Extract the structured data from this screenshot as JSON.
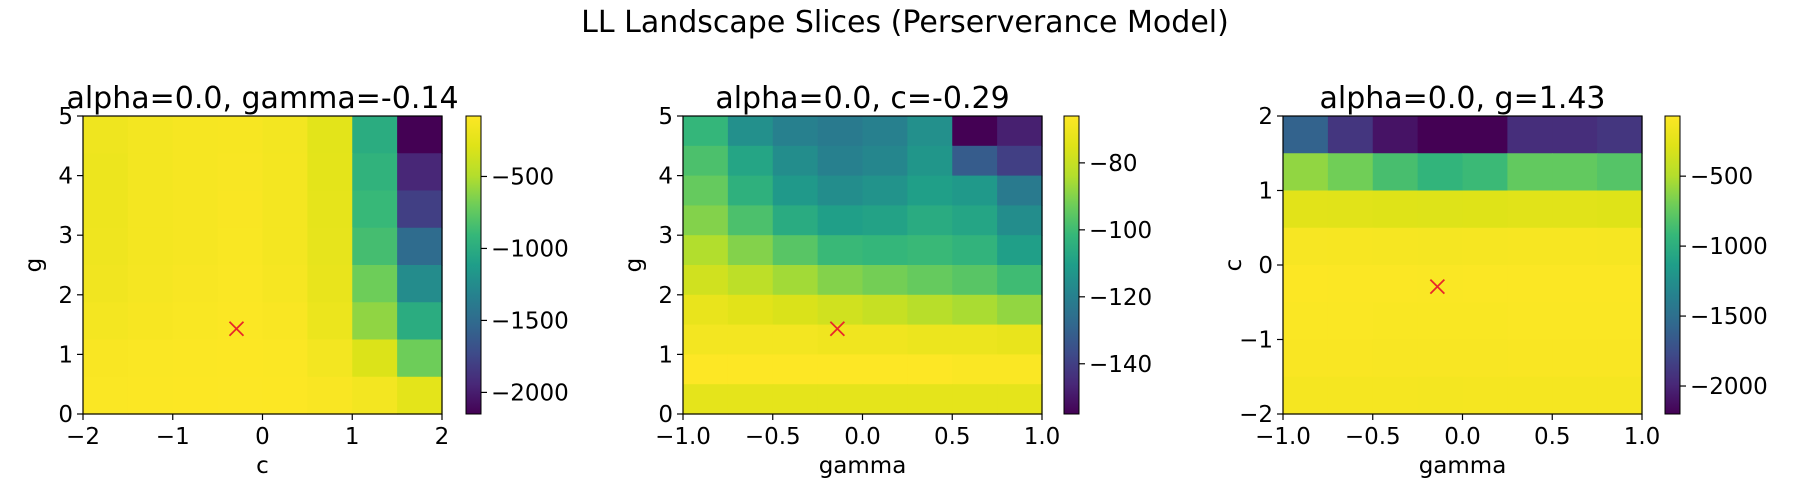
{
  "figure": {
    "suptitle": "LL Landscape Slices (Perserverance Model)"
  },
  "chart_data": [
    {
      "type": "heatmap",
      "title": "alpha=0.0, gamma=-0.14",
      "xlabel": "c",
      "ylabel": "g",
      "xlim": [
        -2,
        2
      ],
      "ylim": [
        0,
        5
      ],
      "xticks": [
        -2,
        -1,
        0,
        1,
        2
      ],
      "yticks": [
        0,
        1,
        2,
        3,
        4,
        5
      ],
      "xtick_labels": [
        "−2",
        "−1",
        "0",
        "1",
        "2"
      ],
      "ytick_labels": [
        "0",
        "1",
        "2",
        "3",
        "4",
        "5"
      ],
      "colormap": "viridis",
      "clim": [
        -2150,
        -80
      ],
      "colorbar_ticks": [
        -2000,
        -1500,
        -1000,
        -500
      ],
      "colorbar_tick_labels": [
        "−2000",
        "−1500",
        "−1000",
        "−500"
      ],
      "grid_rows_top_to_bottom": [
        [
          -180,
          -150,
          -130,
          -120,
          -150,
          -260,
          -1000,
          -2150
        ],
        [
          -190,
          -150,
          -130,
          -115,
          -145,
          -250,
          -950,
          -1950
        ],
        [
          -185,
          -145,
          -125,
          -110,
          -140,
          -240,
          -900,
          -1800
        ],
        [
          -180,
          -145,
          -125,
          -105,
          -140,
          -230,
          -850,
          -1500
        ],
        [
          -160,
          -135,
          -115,
          -100,
          -125,
          -220,
          -700,
          -1250
        ],
        [
          -140,
          -120,
          -105,
          -95,
          -110,
          -200,
          -600,
          -1000
        ],
        [
          -110,
          -100,
          -95,
          -90,
          -95,
          -150,
          -300,
          -700
        ],
        [
          -100,
          -95,
          -90,
          -85,
          -90,
          -110,
          -150,
          -250
        ]
      ],
      "marker": {
        "x": -0.29,
        "y": 1.43,
        "symbol": "x",
        "color": "#e8272a"
      }
    },
    {
      "type": "heatmap",
      "title": "alpha=0.0, c=-0.29",
      "xlabel": "gamma",
      "ylabel": "g",
      "xlim": [
        -1.0,
        1.0
      ],
      "ylim": [
        0,
        5
      ],
      "xticks": [
        -1.0,
        -0.5,
        0.0,
        0.5,
        1.0
      ],
      "yticks": [
        0,
        1,
        2,
        3,
        4,
        5
      ],
      "xtick_labels": [
        "−1.0",
        "−0.5",
        "0.0",
        "0.5",
        "1.0"
      ],
      "ytick_labels": [
        "0",
        "1",
        "2",
        "3",
        "4",
        "5"
      ],
      "colormap": "viridis",
      "clim": [
        -155,
        -66
      ],
      "colorbar_ticks": [
        -140,
        -120,
        -100,
        -80
      ],
      "colorbar_tick_labels": [
        "−140",
        "−120",
        "−100",
        "−80"
      ],
      "grid_rows_top_to_bottom": [
        [
          -102,
          -115,
          -120,
          -122,
          -120,
          -115,
          -155,
          -148
        ],
        [
          -98,
          -108,
          -116,
          -120,
          -118,
          -113,
          -132,
          -140
        ],
        [
          -94,
          -104,
          -112,
          -116,
          -114,
          -110,
          -112,
          -122
        ],
        [
          -90,
          -98,
          -106,
          -110,
          -109,
          -106,
          -108,
          -116
        ],
        [
          -84,
          -90,
          -96,
          -101,
          -102,
          -101,
          -103,
          -110
        ],
        [
          -78,
          -82,
          -86,
          -90,
          -92,
          -94,
          -96,
          -100
        ],
        [
          -72,
          -74,
          -76,
          -78,
          -80,
          -83,
          -85,
          -88
        ],
        [
          -69,
          -69,
          -69,
          -70,
          -70,
          -71,
          -71,
          -72
        ],
        [
          -66,
          -66,
          -66,
          -66,
          -66,
          -66,
          -67,
          -67
        ],
        [
          -73,
          -73,
          -73,
          -73,
          -73,
          -73,
          -73,
          -73
        ]
      ],
      "marker": {
        "x": -0.14,
        "y": 1.43,
        "symbol": "x",
        "color": "#e8272a"
      }
    },
    {
      "type": "heatmap",
      "title": "alpha=0.0, g=1.43",
      "xlabel": "gamma",
      "ylabel": "c",
      "xlim": [
        -1.0,
        1.0
      ],
      "ylim": [
        -2,
        2
      ],
      "xticks": [
        -1.0,
        -0.5,
        0.0,
        0.5,
        1.0
      ],
      "yticks": [
        -2,
        -1,
        0,
        1,
        2
      ],
      "xtick_labels": [
        "−1.0",
        "−0.5",
        "0.0",
        "0.5",
        "1.0"
      ],
      "ytick_labels": [
        "−2",
        "−1",
        "0",
        "1",
        "2"
      ],
      "colormap": "viridis",
      "clim": [
        -2200,
        -70
      ],
      "colorbar_ticks": [
        -2000,
        -1500,
        -1000,
        -500
      ],
      "colorbar_tick_labels": [
        "−2000",
        "−1500",
        "−1000",
        "−500"
      ],
      "grid_rows_top_to_bottom": [
        [
          -1600,
          -1900,
          -2100,
          -2200,
          -2200,
          -1950,
          -1950,
          -1900
        ],
        [
          -600,
          -700,
          -850,
          -950,
          -900,
          -750,
          -750,
          -800
        ],
        [
          -260,
          -270,
          -280,
          -290,
          -280,
          -270,
          -270,
          -280
        ],
        [
          -110,
          -115,
          -120,
          -125,
          -120,
          -115,
          -115,
          -120
        ],
        [
          -80,
          -85,
          -85,
          -90,
          -85,
          -85,
          -85,
          -85
        ],
        [
          -90,
          -90,
          -95,
          -95,
          -95,
          -90,
          -90,
          -90
        ],
        [
          -100,
          -100,
          -105,
          -105,
          -105,
          -100,
          -100,
          -100
        ],
        [
          -130,
          -130,
          -130,
          -135,
          -130,
          -130,
          -130,
          -130
        ]
      ],
      "marker": {
        "x": -0.14,
        "y": -0.29,
        "symbol": "x",
        "color": "#e8272a"
      }
    }
  ]
}
